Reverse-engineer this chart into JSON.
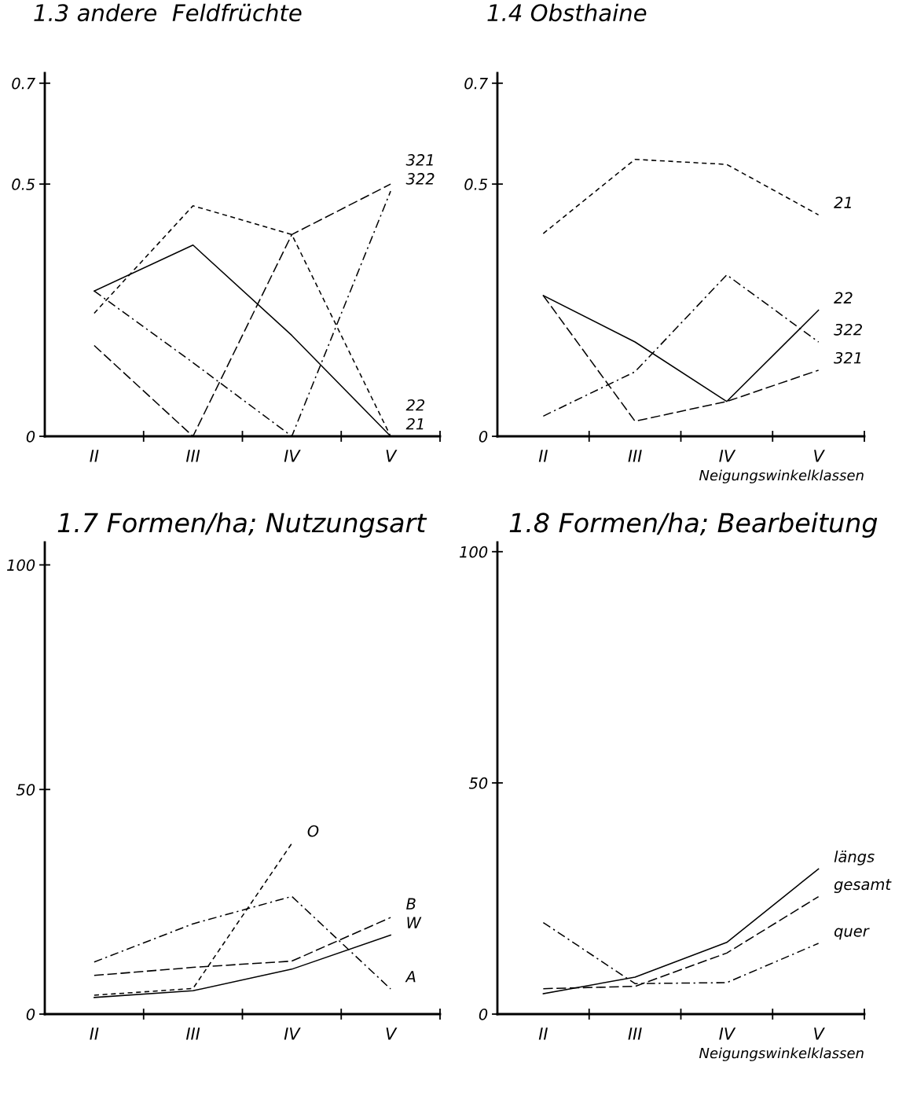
{
  "chart_data": [
    {
      "type": "line",
      "title": "1.3 andere  Feldfrüchte",
      "categories": [
        "II",
        "III",
        "IV",
        "V"
      ],
      "ylim": [
        0,
        0.72
      ],
      "yticks": [
        0,
        0.5,
        0.7
      ],
      "grid": false,
      "legend": false,
      "marker": "none",
      "series": [
        {
          "name": "321",
          "color": "#000000",
          "line_style": "longdash",
          "values": [
            0.18,
            0,
            0.4,
            0.5
          ]
        },
        {
          "name": "322",
          "color": "#000000",
          "line_style": "dashdot",
          "values": [
            0.288,
            0.146,
            0,
            0.486
          ]
        },
        {
          "name": "21",
          "color": "#000000",
          "line_style": "dashed",
          "values": [
            0.244,
            0.457,
            0.4,
            0
          ]
        },
        {
          "name": "22",
          "color": "#000000",
          "line_style": "solid",
          "values": [
            0.288,
            0.379,
            0.2,
            0
          ]
        }
      ]
    },
    {
      "type": "line",
      "title": "1.4 Obsthaine",
      "xlabel": "Neigungswinkelklassen",
      "categories": [
        "II",
        "III",
        "IV",
        "V"
      ],
      "ylim": [
        0,
        0.72
      ],
      "yticks": [
        0,
        0.5,
        0.7
      ],
      "grid": false,
      "legend": false,
      "marker": "none",
      "series": [
        {
          "name": "21",
          "color": "#000000",
          "line_style": "dashed",
          "values": [
            0.402,
            0.549,
            0.539,
            0.439
          ]
        },
        {
          "name": "22",
          "color": "#000000",
          "line_style": "solid",
          "values": [
            0.279,
            0.187,
            0.069,
            0.25
          ]
        },
        {
          "name": "322",
          "color": "#000000",
          "line_style": "dashdot",
          "values": [
            0.04,
            0.128,
            0.32,
            0.187
          ]
        },
        {
          "name": "321",
          "color": "#000000",
          "line_style": "longdash",
          "values": [
            0.279,
            0.03,
            0.069,
            0.131
          ]
        }
      ]
    },
    {
      "type": "line",
      "title": "1.7 Formen/ha; Nutzungsart",
      "categories": [
        "II",
        "III",
        "IV",
        "V"
      ],
      "ylim": [
        0,
        105
      ],
      "yticks": [
        0,
        50,
        100
      ],
      "grid": false,
      "legend": false,
      "marker": "none",
      "series": [
        {
          "name": "O",
          "color": "#000000",
          "line_style": "dashed",
          "values": [
            4.2,
            5.7,
            38,
            null
          ]
        },
        {
          "name": "B",
          "color": "#000000",
          "line_style": "longdash",
          "values": [
            8.6,
            10.4,
            11.8,
            21.5
          ]
        },
        {
          "name": "W",
          "color": "#000000",
          "line_style": "solid",
          "values": [
            3.7,
            5.2,
            10.0,
            17.6
          ]
        },
        {
          "name": "A",
          "color": "#000000",
          "line_style": "dashdot",
          "values": [
            11.6,
            20.1,
            26.2,
            5.6
          ]
        }
      ]
    },
    {
      "type": "line",
      "title": "1.8 Formen/ha; Bearbeitung",
      "xlabel": "Neigungswinkelklassen",
      "categories": [
        "II",
        "III",
        "IV",
        "V"
      ],
      "ylim": [
        0,
        102
      ],
      "yticks": [
        0,
        50,
        100
      ],
      "grid": false,
      "legend": false,
      "marker": "none",
      "series": [
        {
          "name": "längs",
          "color": "#000000",
          "line_style": "solid",
          "values": [
            4.4,
            8.0,
            15.5,
            31.4
          ]
        },
        {
          "name": "gesamt",
          "color": "#000000",
          "line_style": "longdash",
          "values": [
            5.5,
            6.0,
            13.2,
            25.4
          ]
        },
        {
          "name": "quer",
          "color": "#000000",
          "line_style": "dashdot",
          "values": [
            19.8,
            6.6,
            6.8,
            15.3
          ]
        }
      ]
    }
  ]
}
